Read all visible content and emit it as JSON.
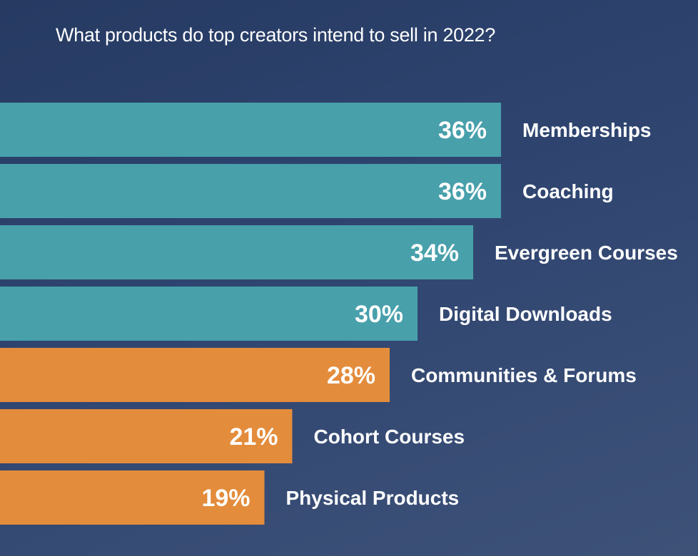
{
  "chart_data": {
    "type": "bar",
    "orientation": "horizontal",
    "title": "What products do top creators intend to sell in 2022?",
    "xlabel": "",
    "ylabel": "",
    "unit": "%",
    "xlim": [
      0,
      36
    ],
    "grid": false,
    "categories": [
      "Memberships",
      "Coaching",
      "Evergreen Courses",
      "Digital Downloads",
      "Communities & Forums",
      "Cohort Courses",
      "Physical Products"
    ],
    "values": [
      36,
      36,
      34,
      30,
      28,
      21,
      19
    ],
    "value_labels": [
      "36%",
      "36%",
      "34%",
      "30%",
      "28%",
      "21%",
      "19%"
    ],
    "bar_colors": [
      "#48a0ab",
      "#48a0ab",
      "#48a0ab",
      "#48a0ab",
      "#e38c3c",
      "#e38c3c",
      "#e38c3c"
    ]
  },
  "colors": {
    "background_start": "#263a62",
    "background_end": "#3e5278",
    "teal": "#48a0ab",
    "orange": "#e38c3c",
    "text": "#ffffff"
  }
}
